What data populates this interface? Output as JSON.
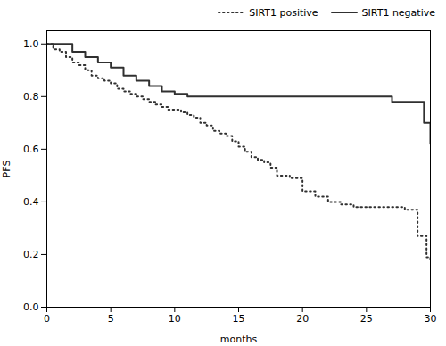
{
  "chart_data": {
    "type": "step",
    "xlabel": "months",
    "ylabel": "PFS",
    "xlim": [
      0,
      30
    ],
    "ylim": [
      0.0,
      1.05
    ],
    "xticks": [
      0,
      5,
      10,
      15,
      20,
      25,
      30
    ],
    "yticks": [
      {
        "value": 0.0,
        "label": "0.0"
      },
      0.2,
      0.4,
      0.6,
      0.8,
      {
        "value": 1.0,
        "label": "1.0"
      }
    ],
    "legend": "upper right",
    "series": [
      {
        "name": "SIRT1 positive",
        "color": "#303030",
        "line_style": "dotted",
        "x": [
          0,
          0.5,
          1,
          1.5,
          2,
          2.5,
          3,
          3.5,
          4,
          4.5,
          5,
          5.5,
          6,
          6.5,
          7,
          7.5,
          8,
          8.5,
          9,
          9.5,
          10,
          10.5,
          11,
          11.5,
          12,
          12.5,
          13,
          13.5,
          14,
          14.5,
          15,
          15.5,
          16,
          16.5,
          17,
          17.5,
          18,
          18.5,
          19,
          20,
          21,
          22,
          23,
          24,
          25,
          26,
          27,
          28,
          29,
          29.3,
          29.7,
          30
        ],
        "values": [
          1.0,
          0.98,
          0.97,
          0.95,
          0.93,
          0.92,
          0.9,
          0.88,
          0.87,
          0.86,
          0.85,
          0.83,
          0.82,
          0.81,
          0.8,
          0.79,
          0.78,
          0.77,
          0.76,
          0.75,
          0.75,
          0.74,
          0.73,
          0.72,
          0.7,
          0.69,
          0.67,
          0.66,
          0.65,
          0.63,
          0.61,
          0.59,
          0.57,
          0.56,
          0.55,
          0.53,
          0.5,
          0.5,
          0.49,
          0.44,
          0.42,
          0.4,
          0.39,
          0.38,
          0.38,
          0.38,
          0.38,
          0.37,
          0.27,
          0.27,
          0.19,
          0.18
        ]
      },
      {
        "name": "SIRT1 negative",
        "color": "#303030",
        "line_style": "solid",
        "x": [
          0,
          1,
          2,
          3,
          4,
          5,
          6,
          7,
          8,
          9,
          10,
          11,
          12,
          13,
          14,
          15,
          16,
          17,
          18,
          19,
          20,
          21,
          22,
          23,
          24,
          25,
          26,
          27,
          28,
          29,
          29.5,
          30
        ],
        "values": [
          1.0,
          1.0,
          0.97,
          0.95,
          0.93,
          0.91,
          0.88,
          0.86,
          0.84,
          0.82,
          0.81,
          0.8,
          0.8,
          0.8,
          0.8,
          0.8,
          0.8,
          0.8,
          0.8,
          0.8,
          0.8,
          0.8,
          0.8,
          0.8,
          0.8,
          0.8,
          0.8,
          0.78,
          0.78,
          0.78,
          0.7,
          0.62
        ]
      }
    ]
  }
}
